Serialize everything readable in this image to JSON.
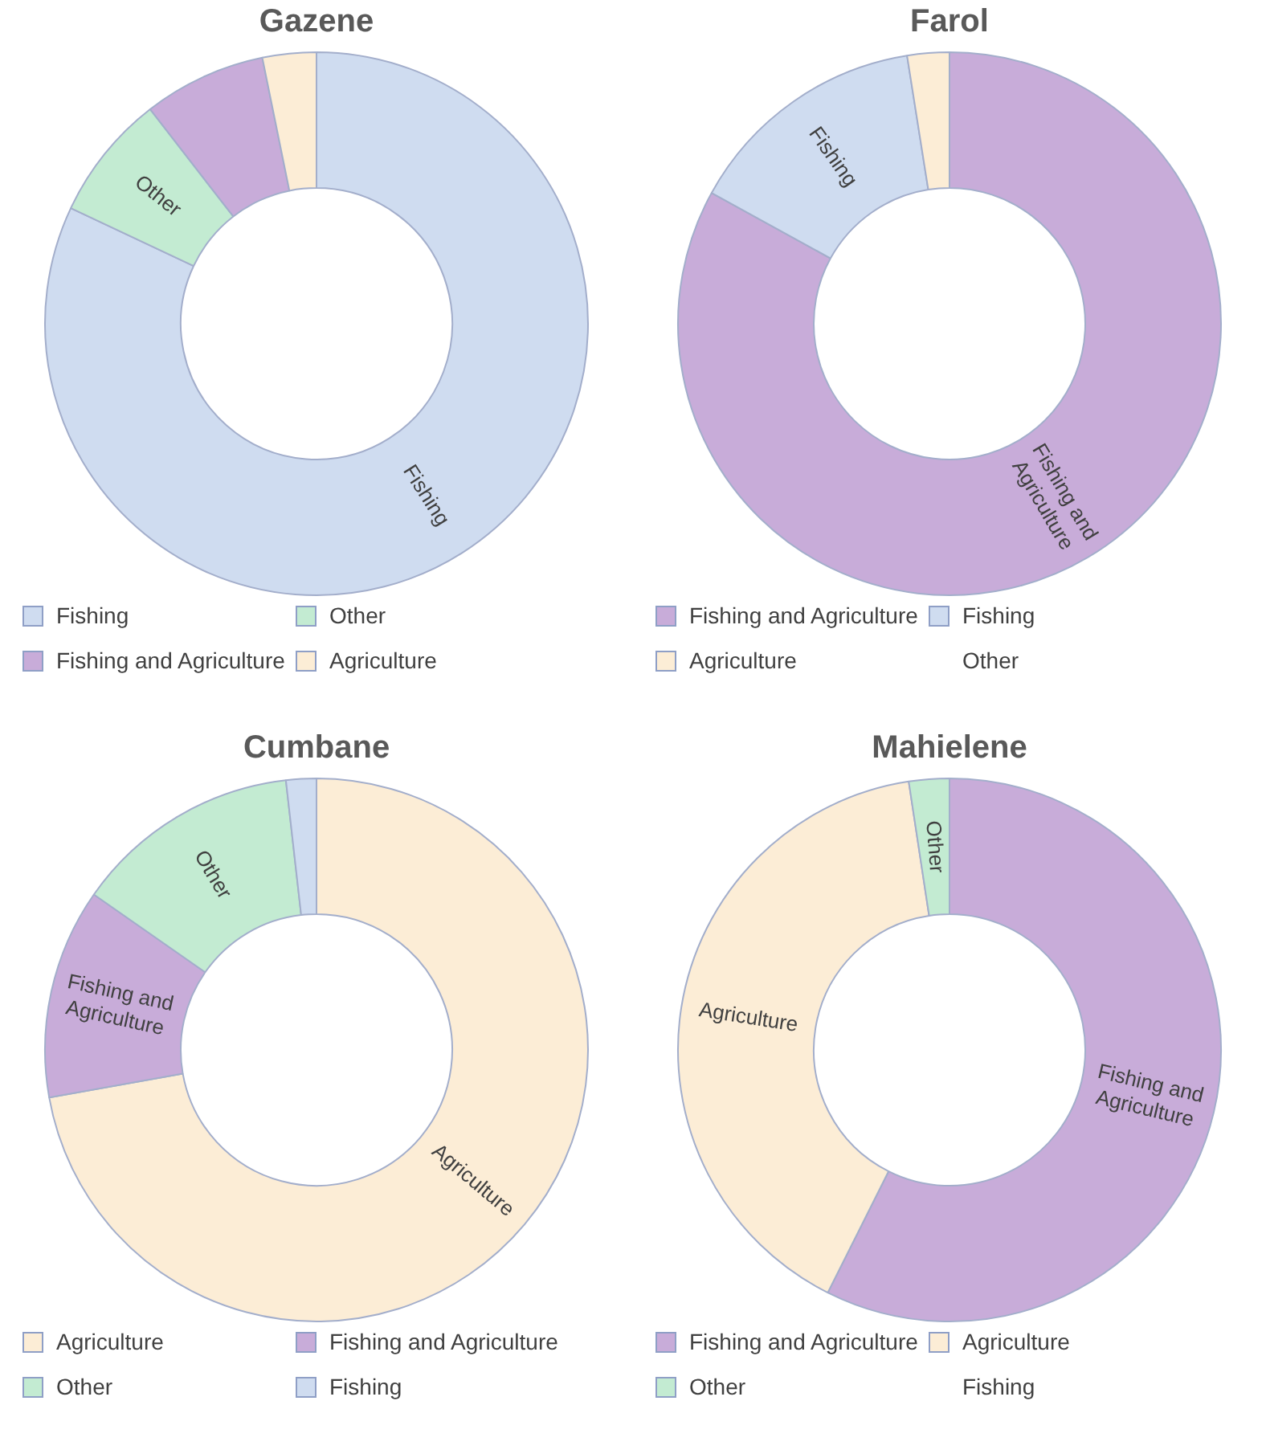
{
  "chart_data": [
    {
      "type": "donut",
      "title": "Gazene",
      "categories": [
        "Fishing",
        "Other",
        "Fishing and Agriculture",
        "Agriculture"
      ],
      "values": [
        82,
        7.5,
        7.3,
        3.2
      ],
      "colors": [
        "#cfdcf0",
        "#c3ebd2",
        "#c8acd9",
        "#fcedd6"
      ],
      "legend": "bottom",
      "annotations": [
        {
          "text": "Fishing",
          "x": "Fishing"
        },
        {
          "text": "Other",
          "x": "Other"
        }
      ]
    },
    {
      "type": "donut",
      "title": "Farol",
      "categories": [
        "Fishing and Agriculture",
        "Fishing",
        "Agriculture",
        "Other"
      ],
      "values": [
        83,
        14.5,
        2.5,
        0
      ],
      "colors": [
        "#c8acd9",
        "#cfdcf0",
        "#fcedd6",
        null
      ],
      "legend": "bottom",
      "annotations": [
        {
          "text": "Fishing and Agriculture",
          "x": "Fishing and Agriculture"
        },
        {
          "text": "Fishing",
          "x": "Fishing"
        }
      ]
    },
    {
      "type": "donut",
      "title": "Cumbane",
      "categories": [
        "Agriculture",
        "Fishing and Agriculture",
        "Other",
        "Fishing"
      ],
      "values": [
        72.2,
        12.5,
        13.5,
        1.8
      ],
      "colors": [
        "#fcedd6",
        "#c8acd9",
        "#c3ebd2",
        "#cfdcf0"
      ],
      "legend": "bottom",
      "annotations": [
        {
          "text": "Agriculture",
          "x": "Agriculture"
        },
        {
          "text": "Fishing and Agriculture",
          "x": "Fishing and Agriculture"
        },
        {
          "text": "Other",
          "x": "Other"
        }
      ]
    },
    {
      "type": "donut",
      "title": "Mahielene",
      "categories": [
        "Fishing and Agriculture",
        "Agriculture",
        "Other",
        "Fishing"
      ],
      "values": [
        57.4,
        40.2,
        2.4,
        0
      ],
      "colors": [
        "#c8acd9",
        "#fcedd6",
        "#c3ebd2",
        null
      ],
      "legend": "bottom",
      "annotations": [
        {
          "text": "Fishing and Agriculture",
          "x": "Fishing and Agriculture"
        },
        {
          "text": "Agriculture",
          "x": "Agriculture"
        },
        {
          "text": "Other",
          "x": "Other"
        }
      ]
    }
  ]
}
